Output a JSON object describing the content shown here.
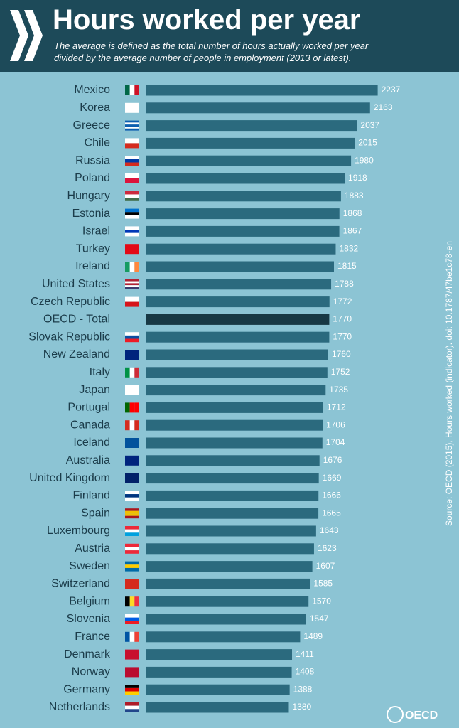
{
  "header": {
    "title": "Hours worked per year",
    "subtitle": "The average is defined as the total number of hours actually worked per year divided by the average number of people in employment (2013 or latest)."
  },
  "chart_data": {
    "type": "hbar",
    "categories": [
      "Mexico",
      "Korea",
      "Greece",
      "Chile",
      "Russia",
      "Poland",
      "Hungary",
      "Estonia",
      "Israel",
      "Turkey",
      "Ireland",
      "United States",
      "Czech Republic",
      "OECD - Total",
      "Slovak Republic",
      "New Zealand",
      "Italy",
      "Japan",
      "Portugal",
      "Canada",
      "Iceland",
      "Australia",
      "United Kingdom",
      "Finland",
      "Spain",
      "Luxembourg",
      "Austria",
      "Sweden",
      "Switzerland",
      "Belgium",
      "Slovenia",
      "France",
      "Denmark",
      "Norway",
      "Germany",
      "Netherlands"
    ],
    "values": [
      2237,
      2163,
      2037,
      2015,
      1980,
      1918,
      1883,
      1868,
      1867,
      1832,
      1815,
      1788,
      1772,
      1770,
      1770,
      1760,
      1752,
      1735,
      1712,
      1706,
      1704,
      1676,
      1669,
      1666,
      1665,
      1643,
      1623,
      1607,
      1585,
      1570,
      1547,
      1489,
      1411,
      1408,
      1388,
      1380
    ],
    "colors": [
      "#2b6a7e",
      "#2b6a7e",
      "#2b6a7e",
      "#2b6a7e",
      "#2b6a7e",
      "#2b6a7e",
      "#2b6a7e",
      "#2b6a7e",
      "#2b6a7e",
      "#2b6a7e",
      "#2b6a7e",
      "#2b6a7e",
      "#2b6a7e",
      "#173844",
      "#2b6a7e",
      "#2b6a7e",
      "#2b6a7e",
      "#2b6a7e",
      "#2b6a7e",
      "#2b6a7e",
      "#2b6a7e",
      "#2b6a7e",
      "#2b6a7e",
      "#2b6a7e",
      "#2b6a7e",
      "#2b6a7e",
      "#2b6a7e",
      "#2b6a7e",
      "#2b6a7e",
      "#2b6a7e",
      "#2b6a7e",
      "#2b6a7e",
      "#2b6a7e",
      "#2b6a7e",
      "#2b6a7e",
      "#2b6a7e"
    ],
    "xlim": [
      0,
      2500
    ],
    "source": "Source: OECD (2015), Hours worked (indicator). doi: 10.1787/47be1c78-en",
    "logo": "OECD"
  }
}
